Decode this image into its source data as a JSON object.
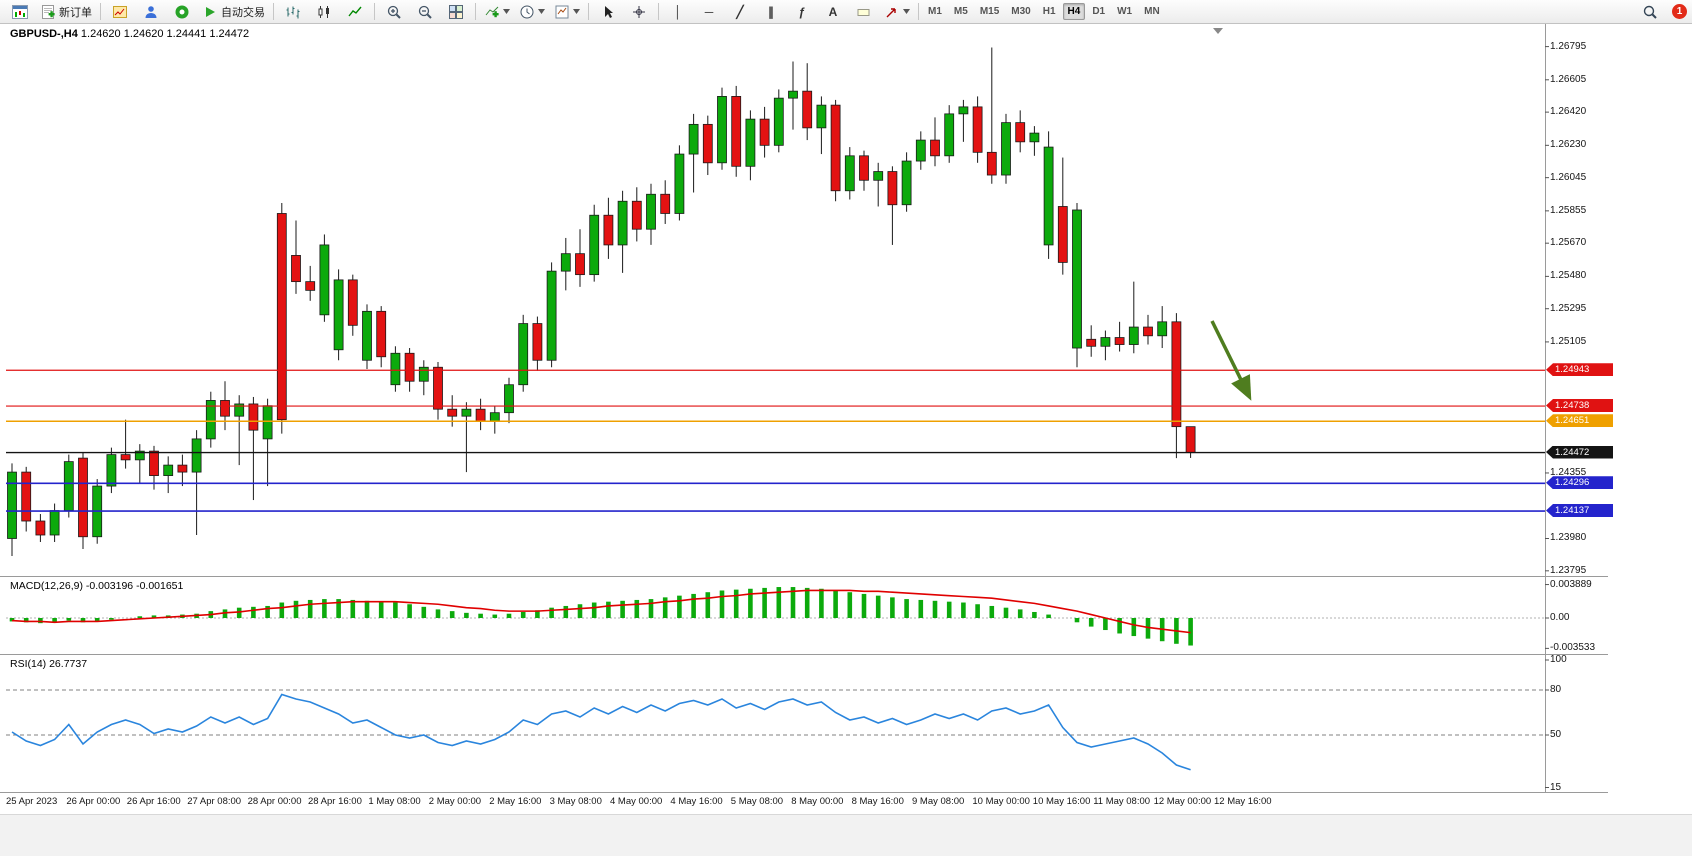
{
  "toolbar": {
    "new_order_label": "新订单",
    "auto_trading_label": "自动交易",
    "timeframes": [
      "M1",
      "M5",
      "M15",
      "M30",
      "H1",
      "H4",
      "D1",
      "W1",
      "MN"
    ],
    "active_timeframe": "H4",
    "notification_count": "1",
    "line_tools": [
      {
        "name": "vertical-line-tool",
        "glyph": "│"
      },
      {
        "name": "horizontal-line-tool",
        "glyph": "─"
      },
      {
        "name": "trendline-tool",
        "glyph": "╱"
      },
      {
        "name": "channel-tool",
        "glyph": "∥"
      },
      {
        "name": "fibonacci-tool",
        "glyph": "ƒ"
      },
      {
        "name": "text-tool",
        "glyph": "A"
      }
    ]
  },
  "chart": {
    "symbol_period": "GBPUSD-,H4",
    "ohlc_text": "1.24620 1.24620 1.24441 1.24472",
    "colors": {
      "bull": "#0caa0c",
      "bear": "#e31212",
      "wick": "#1a1a1a",
      "outline": "#1a1a1a"
    },
    "price_axis": {
      "labels": [
        "1.26795",
        "1.26605",
        "1.26420",
        "1.26230",
        "1.26045",
        "1.25855",
        "1.25670",
        "1.25480",
        "1.25295",
        "1.25105",
        "1.24355",
        "1.23980",
        "1.23795"
      ]
    },
    "h_lines": [
      {
        "price": 1.24943,
        "label": "1.24943",
        "color": "#e01212",
        "width": 1.2
      },
      {
        "price": 1.24738,
        "label": "1.24738",
        "color": "#e01212",
        "width": 1.2
      },
      {
        "price": 1.24651,
        "label": "1.24651",
        "color": "#efa000",
        "width": 1.6
      },
      {
        "price": 1.24472,
        "label": "1.24472",
        "color": "#141414",
        "width": 1.4
      },
      {
        "price": 1.24296,
        "label": "1.24296",
        "color": "#2424cc",
        "width": 1.6
      },
      {
        "price": 1.24137,
        "label": "1.24137",
        "color": "#2424cc",
        "width": 1.6
      }
    ],
    "annotation_arrow": {
      "color": "#4f7d1f"
    },
    "candles": [
      [
        1.2398,
        1.2441,
        1.2388,
        1.2436
      ],
      [
        1.2436,
        1.2439,
        1.2402,
        1.2408
      ],
      [
        1.2408,
        1.2412,
        1.2396,
        1.24
      ],
      [
        1.24,
        1.2418,
        1.2396,
        1.2414
      ],
      [
        1.2414,
        1.2446,
        1.241,
        1.2442
      ],
      [
        1.2444,
        1.2447,
        1.2392,
        1.2399
      ],
      [
        1.2399,
        1.2432,
        1.2395,
        1.2428
      ],
      [
        1.2428,
        1.245,
        1.2424,
        1.2446
      ],
      [
        1.2446,
        1.2466,
        1.2438,
        1.2443
      ],
      [
        1.2443,
        1.2452,
        1.243,
        1.2448
      ],
      [
        1.2448,
        1.2451,
        1.2426,
        1.2434
      ],
      [
        1.2434,
        1.2445,
        1.2424,
        1.244
      ],
      [
        1.244,
        1.2446,
        1.2428,
        1.2436
      ],
      [
        1.2436,
        1.246,
        1.24,
        1.2455
      ],
      [
        1.2455,
        1.2482,
        1.245,
        1.2477
      ],
      [
        1.2477,
        1.2488,
        1.246,
        1.2468
      ],
      [
        1.2468,
        1.248,
        1.244,
        1.2475
      ],
      [
        1.2475,
        1.2479,
        1.242,
        1.246
      ],
      [
        1.2455,
        1.2478,
        1.2428,
        1.2474
      ],
      [
        1.2584,
        1.259,
        1.2458,
        1.2466
      ],
      [
        1.256,
        1.258,
        1.2538,
        1.2545
      ],
      [
        1.2545,
        1.2554,
        1.2534,
        1.254
      ],
      [
        1.2526,
        1.2572,
        1.2522,
        1.2566
      ],
      [
        1.2506,
        1.2552,
        1.25,
        1.2546
      ],
      [
        1.2546,
        1.2549,
        1.2514,
        1.252
      ],
      [
        1.25,
        1.2532,
        1.2495,
        1.2528
      ],
      [
        1.2528,
        1.2531,
        1.2496,
        1.2502
      ],
      [
        1.2486,
        1.2508,
        1.2482,
        1.2504
      ],
      [
        1.2504,
        1.2507,
        1.2482,
        1.2488
      ],
      [
        1.2488,
        1.25,
        1.248,
        1.2496
      ],
      [
        1.2496,
        1.2499,
        1.2466,
        1.2472
      ],
      [
        1.2472,
        1.248,
        1.2462,
        1.2468
      ],
      [
        1.2468,
        1.2476,
        1.2436,
        1.2472
      ],
      [
        1.2472,
        1.2478,
        1.246,
        1.2465
      ],
      [
        1.2465,
        1.2474,
        1.2458,
        1.247
      ],
      [
        1.247,
        1.249,
        1.2464,
        1.2486
      ],
      [
        1.2486,
        1.2526,
        1.2482,
        1.2521
      ],
      [
        1.2521,
        1.2525,
        1.2494,
        1.25
      ],
      [
        1.25,
        1.2556,
        1.2496,
        1.2551
      ],
      [
        1.2551,
        1.257,
        1.254,
        1.2561
      ],
      [
        1.2561,
        1.2575,
        1.2542,
        1.2549
      ],
      [
        1.2549,
        1.2589,
        1.2545,
        1.2583
      ],
      [
        1.2583,
        1.2593,
        1.2558,
        1.2566
      ],
      [
        1.2566,
        1.2597,
        1.255,
        1.2591
      ],
      [
        1.2591,
        1.2599,
        1.2568,
        1.2575
      ],
      [
        1.2575,
        1.2601,
        1.2566,
        1.2595
      ],
      [
        1.2595,
        1.2603,
        1.2578,
        1.2584
      ],
      [
        1.2584,
        1.2623,
        1.258,
        1.2618
      ],
      [
        1.2618,
        1.2641,
        1.2596,
        1.2635
      ],
      [
        1.2635,
        1.264,
        1.2606,
        1.2613
      ],
      [
        1.2613,
        1.2656,
        1.2609,
        1.2651
      ],
      [
        1.2651,
        1.2657,
        1.2605,
        1.2611
      ],
      [
        1.2611,
        1.2643,
        1.2603,
        1.2638
      ],
      [
        1.2638,
        1.2645,
        1.2616,
        1.2623
      ],
      [
        1.2623,
        1.2655,
        1.2619,
        1.265
      ],
      [
        1.265,
        1.2671,
        1.2632,
        1.2654
      ],
      [
        1.2654,
        1.267,
        1.2626,
        1.2633
      ],
      [
        1.2633,
        1.2651,
        1.2618,
        1.2646
      ],
      [
        1.2646,
        1.2649,
        1.2591,
        1.2597
      ],
      [
        1.2597,
        1.2622,
        1.2592,
        1.2617
      ],
      [
        1.2617,
        1.262,
        1.2597,
        1.2603
      ],
      [
        1.2603,
        1.2613,
        1.2588,
        1.2608
      ],
      [
        1.2608,
        1.2611,
        1.2566,
        1.2589
      ],
      [
        1.2589,
        1.2619,
        1.2585,
        1.2614
      ],
      [
        1.2614,
        1.2631,
        1.2609,
        1.2626
      ],
      [
        1.2626,
        1.2639,
        1.2611,
        1.2617
      ],
      [
        1.2617,
        1.2646,
        1.2613,
        1.2641
      ],
      [
        1.2641,
        1.2649,
        1.2625,
        1.2645
      ],
      [
        1.2645,
        1.2651,
        1.2613,
        1.2619
      ],
      [
        1.2619,
        1.2679,
        1.2601,
        1.2606
      ],
      [
        1.2606,
        1.2641,
        1.2601,
        1.2636
      ],
      [
        1.2636,
        1.2643,
        1.2619,
        1.2625
      ],
      [
        1.2625,
        1.2634,
        1.2617,
        1.263
      ],
      [
        1.2566,
        1.2631,
        1.2558,
        1.2622
      ],
      [
        1.2588,
        1.2616,
        1.2549,
        1.2556
      ],
      [
        1.2507,
        1.259,
        1.2496,
        1.2586
      ],
      [
        1.2512,
        1.252,
        1.2502,
        1.2508
      ],
      [
        1.2508,
        1.2517,
        1.25,
        1.2513
      ],
      [
        1.2513,
        1.2522,
        1.2505,
        1.2509
      ],
      [
        1.2509,
        1.2545,
        1.2504,
        1.2519
      ],
      [
        1.2519,
        1.2526,
        1.2509,
        1.2514
      ],
      [
        1.2514,
        1.2531,
        1.2507,
        1.2522
      ],
      [
        1.2522,
        1.2527,
        1.2444,
        1.2462
      ],
      [
        1.2462,
        1.2462,
        1.24441,
        1.24472
      ]
    ]
  },
  "macd": {
    "label": "MACD(12,26,9)",
    "values_text": "-0.003196 -0.001651",
    "scale_labels": [
      "0.003889",
      "0.00",
      "-0.003533"
    ],
    "colors": {
      "hist": "#0caa0c",
      "signal": "#e00000"
    },
    "hist": [
      -0.0004,
      -0.0005,
      -0.0006,
      -0.0005,
      -0.0003,
      -0.0005,
      -0.0004,
      -0.0002,
      0,
      0.0002,
      0.0003,
      0.0003,
      0.0004,
      0.0005,
      0.0008,
      0.001,
      0.0012,
      0.0013,
      0.0014,
      0.0018,
      0.002,
      0.0021,
      0.0022,
      0.0022,
      0.0021,
      0.002,
      0.0019,
      0.0018,
      0.0016,
      0.0013,
      0.001,
      0.0008,
      0.0006,
      0.0005,
      0.0004,
      0.0005,
      0.0007,
      0.0009,
      0.0012,
      0.0014,
      0.0016,
      0.0018,
      0.0019,
      0.002,
      0.0021,
      0.0022,
      0.0024,
      0.0026,
      0.0028,
      0.003,
      0.0032,
      0.0033,
      0.0034,
      0.0035,
      0.0036,
      0.0036,
      0.0035,
      0.0034,
      0.0032,
      0.003,
      0.0028,
      0.0026,
      0.0024,
      0.0022,
      0.0021,
      0.002,
      0.0019,
      0.0018,
      0.0016,
      0.0014,
      0.0012,
      0.001,
      0.0007,
      0.0004,
      0,
      -0.0005,
      -0.001,
      -0.0014,
      -0.0018,
      -0.0021,
      -0.0024,
      -0.0027,
      -0.003,
      -0.0032
    ],
    "signal": [
      -0.0003,
      -0.0004,
      -0.0004,
      -0.0005,
      -0.0004,
      -0.0004,
      -0.0004,
      -0.0003,
      -0.0002,
      -0.0001,
      0,
      0.0001,
      0.0002,
      0.0003,
      0.0004,
      0.0006,
      0.0007,
      0.0009,
      0.0011,
      0.0012,
      0.0014,
      0.0016,
      0.0017,
      0.0018,
      0.0019,
      0.0019,
      0.0019,
      0.0019,
      0.0018,
      0.0017,
      0.0016,
      0.0014,
      0.0012,
      0.0011,
      0.0009,
      0.0008,
      0.0008,
      0.0008,
      0.0009,
      0.001,
      0.0011,
      0.0012,
      0.0014,
      0.0015,
      0.0016,
      0.0017,
      0.0019,
      0.002,
      0.0022,
      0.0023,
      0.0025,
      0.0026,
      0.0028,
      0.0029,
      0.003,
      0.0031,
      0.0032,
      0.0032,
      0.0032,
      0.0032,
      0.0031,
      0.0031,
      0.003,
      0.0029,
      0.0028,
      0.0027,
      0.0026,
      0.0025,
      0.0024,
      0.0023,
      0.0021,
      0.0019,
      0.0017,
      0.0014,
      0.0011,
      0.0008,
      0.0004,
      0,
      -0.0004,
      -0.0008,
      -0.0011,
      -0.0013,
      -0.0015,
      -0.0017
    ]
  },
  "rsi": {
    "label": "RSI(14)",
    "value_text": "26.7737",
    "color": "#2a85dd",
    "scale_labels": [
      "100",
      "80",
      "50",
      "15"
    ],
    "levels": [
      80,
      50
    ],
    "values": [
      52,
      46,
      43,
      47,
      57,
      44,
      52,
      57,
      60,
      57,
      51,
      54,
      52,
      56,
      62,
      58,
      62,
      57,
      61,
      77,
      74,
      72,
      68,
      64,
      58,
      60,
      55,
      50,
      48,
      50,
      45,
      43,
      46,
      44,
      47,
      52,
      60,
      57,
      64,
      66,
      62,
      68,
      64,
      69,
      65,
      70,
      66,
      71,
      73,
      70,
      74,
      68,
      71,
      67,
      72,
      74,
      70,
      72,
      65,
      60,
      62,
      58,
      61,
      57,
      60,
      64,
      61,
      64,
      60,
      66,
      68,
      64,
      66,
      70,
      55,
      45,
      42,
      44,
      46,
      48,
      44,
      38,
      30,
      26.8
    ]
  },
  "time_axis": {
    "labels": [
      "25 Apr 2023",
      "26 Apr 00:00",
      "26 Apr 16:00",
      "27 Apr 08:00",
      "28 Apr 00:00",
      "28 Apr 16:00",
      "1 May 08:00",
      "2 May 00:00",
      "2 May 16:00",
      "3 May 08:00",
      "4 May 00:00",
      "4 May 16:00",
      "5 May 08:00",
      "8 May 00:00",
      "8 May 16:00",
      "9 May 08:00",
      "10 May 00:00",
      "10 May 16:00",
      "11 May 08:00",
      "12 May 00:00",
      "12 May 16:00"
    ]
  }
}
